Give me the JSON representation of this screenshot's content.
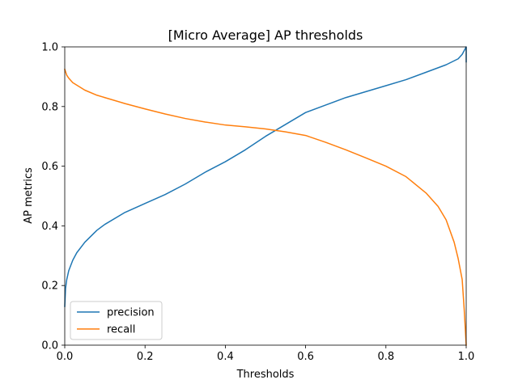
{
  "chart_data": {
    "type": "line",
    "title": "[Micro Average] AP thresholds",
    "xlabel": "Thresholds",
    "ylabel": "AP metrics",
    "xlim": [
      0,
      1
    ],
    "ylim": [
      0,
      1
    ],
    "xticks": [
      0.0,
      0.2,
      0.4,
      0.6,
      0.8,
      1.0
    ],
    "yticks": [
      0.0,
      0.2,
      0.4,
      0.6,
      0.8,
      1.0
    ],
    "xtick_labels": [
      "0.0",
      "0.2",
      "0.4",
      "0.6",
      "0.8",
      "1.0"
    ],
    "ytick_labels": [
      "0.0",
      "0.2",
      "0.4",
      "0.6",
      "0.8",
      "1.0"
    ],
    "grid": false,
    "legend_position": "lower-left",
    "series": [
      {
        "name": "precision",
        "color": "#1f77b4",
        "x": [
          0.0,
          0.002,
          0.005,
          0.01,
          0.02,
          0.03,
          0.05,
          0.08,
          0.1,
          0.15,
          0.2,
          0.25,
          0.3,
          0.35,
          0.4,
          0.45,
          0.5,
          0.55,
          0.6,
          0.65,
          0.7,
          0.75,
          0.8,
          0.85,
          0.9,
          0.95,
          0.98,
          0.99,
          1.0,
          1.0
        ],
        "y": [
          0.13,
          0.19,
          0.22,
          0.25,
          0.285,
          0.31,
          0.345,
          0.385,
          0.405,
          0.445,
          0.475,
          0.505,
          0.54,
          0.58,
          0.615,
          0.655,
          0.7,
          0.74,
          0.78,
          0.805,
          0.83,
          0.85,
          0.87,
          0.89,
          0.915,
          0.94,
          0.96,
          0.975,
          1.0,
          0.95
        ]
      },
      {
        "name": "recall",
        "color": "#ff7f0e",
        "x": [
          0.0,
          0.005,
          0.01,
          0.02,
          0.05,
          0.08,
          0.1,
          0.15,
          0.2,
          0.25,
          0.3,
          0.35,
          0.4,
          0.45,
          0.5,
          0.55,
          0.6,
          0.65,
          0.7,
          0.75,
          0.8,
          0.85,
          0.9,
          0.93,
          0.95,
          0.97,
          0.98,
          0.99,
          0.995,
          1.0
        ],
        "y": [
          0.925,
          0.905,
          0.895,
          0.88,
          0.855,
          0.838,
          0.83,
          0.81,
          0.792,
          0.775,
          0.76,
          0.748,
          0.738,
          0.732,
          0.725,
          0.715,
          0.703,
          0.68,
          0.655,
          0.628,
          0.6,
          0.565,
          0.51,
          0.465,
          0.42,
          0.345,
          0.29,
          0.22,
          0.12,
          0.0
        ]
      }
    ]
  }
}
